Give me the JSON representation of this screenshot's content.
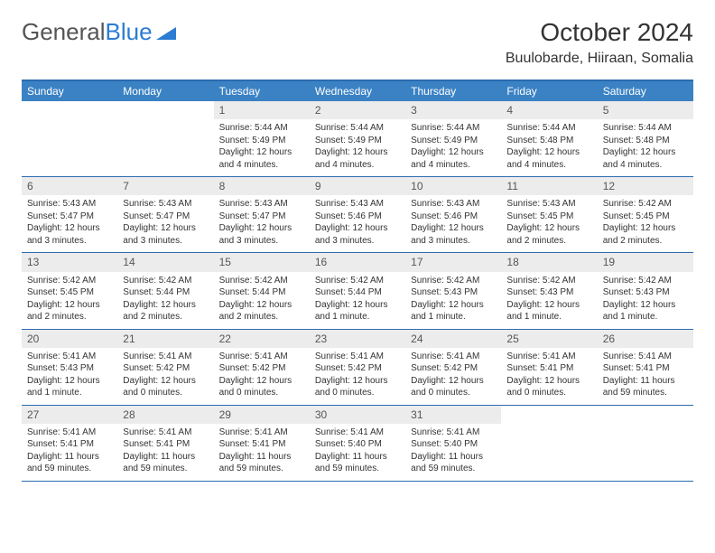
{
  "logo": {
    "text1": "General",
    "text2": "Blue"
  },
  "title": "October 2024",
  "location": "Buulobarde, Hiiraan, Somalia",
  "colors": {
    "header_bg": "#3b82c4",
    "border": "#2b6cb0",
    "daynum_bg": "#ececec",
    "logo_blue": "#2b7cd3"
  },
  "day_labels": [
    "Sunday",
    "Monday",
    "Tuesday",
    "Wednesday",
    "Thursday",
    "Friday",
    "Saturday"
  ],
  "weeks": [
    [
      {
        "n": "",
        "sr": "",
        "ss": "",
        "dl": ""
      },
      {
        "n": "",
        "sr": "",
        "ss": "",
        "dl": ""
      },
      {
        "n": "1",
        "sr": "Sunrise: 5:44 AM",
        "ss": "Sunset: 5:49 PM",
        "dl": "Daylight: 12 hours and 4 minutes."
      },
      {
        "n": "2",
        "sr": "Sunrise: 5:44 AM",
        "ss": "Sunset: 5:49 PM",
        "dl": "Daylight: 12 hours and 4 minutes."
      },
      {
        "n": "3",
        "sr": "Sunrise: 5:44 AM",
        "ss": "Sunset: 5:49 PM",
        "dl": "Daylight: 12 hours and 4 minutes."
      },
      {
        "n": "4",
        "sr": "Sunrise: 5:44 AM",
        "ss": "Sunset: 5:48 PM",
        "dl": "Daylight: 12 hours and 4 minutes."
      },
      {
        "n": "5",
        "sr": "Sunrise: 5:44 AM",
        "ss": "Sunset: 5:48 PM",
        "dl": "Daylight: 12 hours and 4 minutes."
      }
    ],
    [
      {
        "n": "6",
        "sr": "Sunrise: 5:43 AM",
        "ss": "Sunset: 5:47 PM",
        "dl": "Daylight: 12 hours and 3 minutes."
      },
      {
        "n": "7",
        "sr": "Sunrise: 5:43 AM",
        "ss": "Sunset: 5:47 PM",
        "dl": "Daylight: 12 hours and 3 minutes."
      },
      {
        "n": "8",
        "sr": "Sunrise: 5:43 AM",
        "ss": "Sunset: 5:47 PM",
        "dl": "Daylight: 12 hours and 3 minutes."
      },
      {
        "n": "9",
        "sr": "Sunrise: 5:43 AM",
        "ss": "Sunset: 5:46 PM",
        "dl": "Daylight: 12 hours and 3 minutes."
      },
      {
        "n": "10",
        "sr": "Sunrise: 5:43 AM",
        "ss": "Sunset: 5:46 PM",
        "dl": "Daylight: 12 hours and 3 minutes."
      },
      {
        "n": "11",
        "sr": "Sunrise: 5:43 AM",
        "ss": "Sunset: 5:45 PM",
        "dl": "Daylight: 12 hours and 2 minutes."
      },
      {
        "n": "12",
        "sr": "Sunrise: 5:42 AM",
        "ss": "Sunset: 5:45 PM",
        "dl": "Daylight: 12 hours and 2 minutes."
      }
    ],
    [
      {
        "n": "13",
        "sr": "Sunrise: 5:42 AM",
        "ss": "Sunset: 5:45 PM",
        "dl": "Daylight: 12 hours and 2 minutes."
      },
      {
        "n": "14",
        "sr": "Sunrise: 5:42 AM",
        "ss": "Sunset: 5:44 PM",
        "dl": "Daylight: 12 hours and 2 minutes."
      },
      {
        "n": "15",
        "sr": "Sunrise: 5:42 AM",
        "ss": "Sunset: 5:44 PM",
        "dl": "Daylight: 12 hours and 2 minutes."
      },
      {
        "n": "16",
        "sr": "Sunrise: 5:42 AM",
        "ss": "Sunset: 5:44 PM",
        "dl": "Daylight: 12 hours and 1 minute."
      },
      {
        "n": "17",
        "sr": "Sunrise: 5:42 AM",
        "ss": "Sunset: 5:43 PM",
        "dl": "Daylight: 12 hours and 1 minute."
      },
      {
        "n": "18",
        "sr": "Sunrise: 5:42 AM",
        "ss": "Sunset: 5:43 PM",
        "dl": "Daylight: 12 hours and 1 minute."
      },
      {
        "n": "19",
        "sr": "Sunrise: 5:42 AM",
        "ss": "Sunset: 5:43 PM",
        "dl": "Daylight: 12 hours and 1 minute."
      }
    ],
    [
      {
        "n": "20",
        "sr": "Sunrise: 5:41 AM",
        "ss": "Sunset: 5:43 PM",
        "dl": "Daylight: 12 hours and 1 minute."
      },
      {
        "n": "21",
        "sr": "Sunrise: 5:41 AM",
        "ss": "Sunset: 5:42 PM",
        "dl": "Daylight: 12 hours and 0 minutes."
      },
      {
        "n": "22",
        "sr": "Sunrise: 5:41 AM",
        "ss": "Sunset: 5:42 PM",
        "dl": "Daylight: 12 hours and 0 minutes."
      },
      {
        "n": "23",
        "sr": "Sunrise: 5:41 AM",
        "ss": "Sunset: 5:42 PM",
        "dl": "Daylight: 12 hours and 0 minutes."
      },
      {
        "n": "24",
        "sr": "Sunrise: 5:41 AM",
        "ss": "Sunset: 5:42 PM",
        "dl": "Daylight: 12 hours and 0 minutes."
      },
      {
        "n": "25",
        "sr": "Sunrise: 5:41 AM",
        "ss": "Sunset: 5:41 PM",
        "dl": "Daylight: 12 hours and 0 minutes."
      },
      {
        "n": "26",
        "sr": "Sunrise: 5:41 AM",
        "ss": "Sunset: 5:41 PM",
        "dl": "Daylight: 11 hours and 59 minutes."
      }
    ],
    [
      {
        "n": "27",
        "sr": "Sunrise: 5:41 AM",
        "ss": "Sunset: 5:41 PM",
        "dl": "Daylight: 11 hours and 59 minutes."
      },
      {
        "n": "28",
        "sr": "Sunrise: 5:41 AM",
        "ss": "Sunset: 5:41 PM",
        "dl": "Daylight: 11 hours and 59 minutes."
      },
      {
        "n": "29",
        "sr": "Sunrise: 5:41 AM",
        "ss": "Sunset: 5:41 PM",
        "dl": "Daylight: 11 hours and 59 minutes."
      },
      {
        "n": "30",
        "sr": "Sunrise: 5:41 AM",
        "ss": "Sunset: 5:40 PM",
        "dl": "Daylight: 11 hours and 59 minutes."
      },
      {
        "n": "31",
        "sr": "Sunrise: 5:41 AM",
        "ss": "Sunset: 5:40 PM",
        "dl": "Daylight: 11 hours and 59 minutes."
      },
      {
        "n": "",
        "sr": "",
        "ss": "",
        "dl": ""
      },
      {
        "n": "",
        "sr": "",
        "ss": "",
        "dl": ""
      }
    ]
  ]
}
